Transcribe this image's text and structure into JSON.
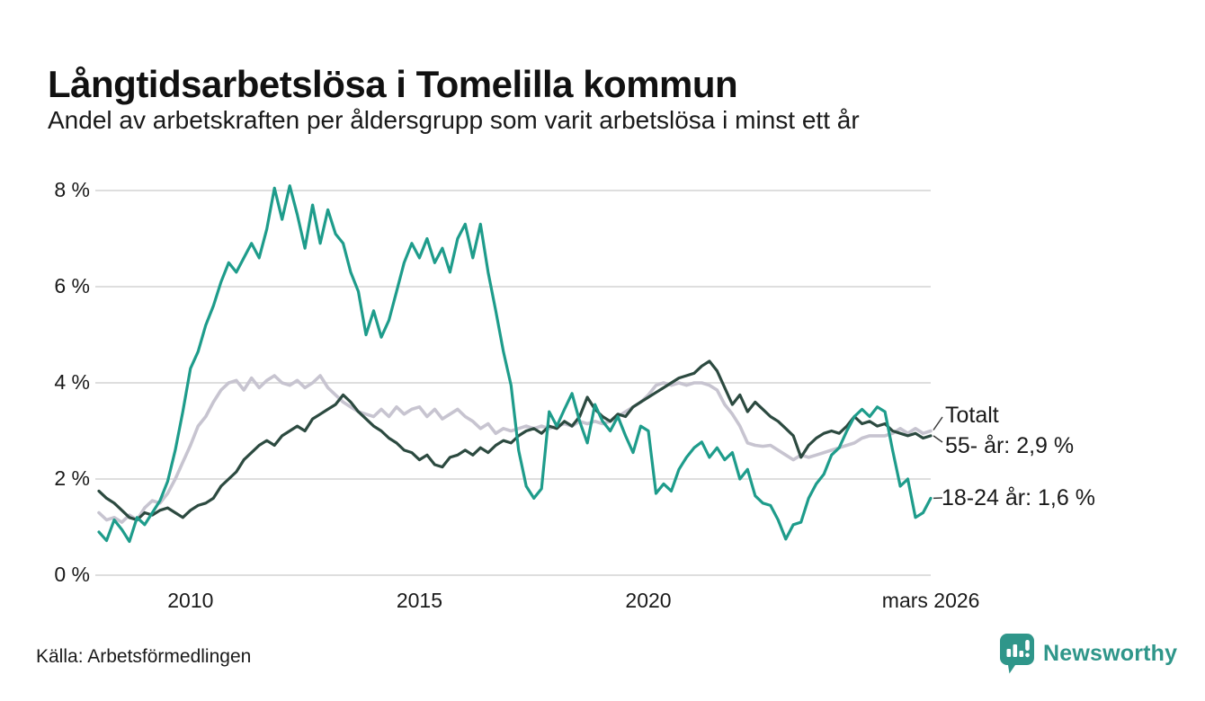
{
  "header": {
    "title": "Långtidsarbetslösa i Tomelilla kommun",
    "subtitle": "Andel av arbetskraften per åldersgrupp som varit arbetslösa i minst ett år"
  },
  "chart_data": {
    "type": "line",
    "title": "Långtidsarbetslösa i Tomelilla kommun",
    "subtitle": "Andel av arbetskraften per åldersgrupp som varit arbetslösa i minst ett år",
    "unit": "% av arbetskraften",
    "grid": "horizontal",
    "legend_position": "right-end-labels",
    "x0": 2008.0,
    "dx": 0.16667,
    "x_axis": {
      "ticks": [
        {
          "label": "2010",
          "year": 2010
        },
        {
          "label": "2015",
          "year": 2015
        },
        {
          "label": "2020",
          "year": 2020
        },
        {
          "label": "mars 2026",
          "year": 2026.17
        }
      ],
      "min": 2008.0,
      "max": 2026.17
    },
    "y_axis": {
      "min": 0,
      "max": 8,
      "ticks": [
        {
          "label": "0 %",
          "value": 0
        },
        {
          "label": "2 %",
          "value": 2
        },
        {
          "label": "4 %",
          "value": 4
        },
        {
          "label": "6 %",
          "value": 6
        },
        {
          "label": "8 %",
          "value": 8
        }
      ]
    },
    "end_labels": {
      "totalt": "Totalt",
      "older": "55- år: 2,9 %",
      "youth": "18-24 år: 1,6 %"
    },
    "series": [
      {
        "name": "Totalt",
        "color": "#c7c4d0",
        "width": 3.6,
        "end_value": 3.0,
        "values": [
          1.3,
          1.15,
          1.2,
          1.1,
          1.25,
          1.15,
          1.4,
          1.55,
          1.5,
          1.7,
          2.0,
          2.35,
          2.7,
          3.1,
          3.3,
          3.6,
          3.85,
          4.0,
          4.05,
          3.85,
          4.1,
          3.9,
          4.05,
          4.15,
          4.0,
          3.95,
          4.05,
          3.9,
          4.0,
          4.15,
          3.9,
          3.75,
          3.6,
          3.5,
          3.4,
          3.35,
          3.3,
          3.45,
          3.3,
          3.5,
          3.35,
          3.45,
          3.5,
          3.3,
          3.45,
          3.25,
          3.35,
          3.45,
          3.3,
          3.2,
          3.05,
          3.15,
          2.95,
          3.05,
          3.0,
          3.05,
          3.1,
          3.05,
          3.1,
          3.05,
          3.1,
          3.15,
          3.1,
          3.2,
          3.15,
          3.2,
          3.15,
          3.2,
          3.3,
          3.4,
          3.5,
          3.6,
          3.75,
          3.95,
          4.0,
          3.95,
          4.0,
          3.95,
          4.0,
          4.0,
          3.95,
          3.85,
          3.55,
          3.35,
          3.1,
          2.75,
          2.7,
          2.68,
          2.7,
          2.6,
          2.5,
          2.4,
          2.5,
          2.45,
          2.5,
          2.55,
          2.6,
          2.65,
          2.7,
          2.75,
          2.85,
          2.9,
          2.9,
          2.9,
          2.95,
          3.05,
          2.95,
          3.05,
          2.95,
          3.0
        ]
      },
      {
        "name": "55- år",
        "color": "#2c4a40",
        "width": 3.2,
        "end_value": 2.9,
        "values": [
          1.75,
          1.6,
          1.5,
          1.35,
          1.2,
          1.15,
          1.3,
          1.25,
          1.35,
          1.4,
          1.3,
          1.2,
          1.35,
          1.45,
          1.5,
          1.6,
          1.85,
          2.0,
          2.15,
          2.4,
          2.55,
          2.7,
          2.8,
          2.7,
          2.9,
          3.0,
          3.1,
          3.0,
          3.25,
          3.35,
          3.45,
          3.55,
          3.75,
          3.6,
          3.4,
          3.25,
          3.1,
          3.0,
          2.85,
          2.75,
          2.6,
          2.55,
          2.4,
          2.5,
          2.3,
          2.25,
          2.45,
          2.5,
          2.6,
          2.5,
          2.65,
          2.55,
          2.7,
          2.8,
          2.75,
          2.9,
          3.0,
          3.05,
          2.95,
          3.1,
          3.05,
          3.2,
          3.1,
          3.3,
          3.7,
          3.45,
          3.3,
          3.2,
          3.35,
          3.3,
          3.5,
          3.6,
          3.7,
          3.8,
          3.9,
          4.0,
          4.1,
          4.15,
          4.2,
          4.35,
          4.45,
          4.25,
          3.9,
          3.55,
          3.75,
          3.4,
          3.6,
          3.45,
          3.3,
          3.2,
          3.05,
          2.9,
          2.45,
          2.7,
          2.85,
          2.95,
          3.0,
          2.95,
          3.1,
          3.3,
          3.15,
          3.2,
          3.1,
          3.15,
          3.0,
          2.95,
          2.9,
          2.95,
          2.85,
          2.9
        ]
      },
      {
        "name": "18-24 år",
        "color": "#1e9c8b",
        "width": 3.2,
        "end_value": 1.6,
        "values": [
          0.9,
          0.72,
          1.15,
          0.95,
          0.7,
          1.2,
          1.05,
          1.3,
          1.55,
          1.95,
          2.6,
          3.4,
          4.3,
          4.65,
          5.2,
          5.6,
          6.1,
          6.5,
          6.3,
          6.6,
          6.9,
          6.6,
          7.2,
          8.05,
          7.4,
          8.1,
          7.5,
          6.8,
          7.7,
          6.9,
          7.6,
          7.1,
          6.9,
          6.3,
          5.9,
          5.0,
          5.5,
          4.95,
          5.3,
          5.9,
          6.5,
          6.9,
          6.6,
          7.0,
          6.5,
          6.8,
          6.3,
          7.0,
          7.3,
          6.6,
          7.3,
          6.3,
          5.5,
          4.65,
          3.95,
          2.6,
          1.85,
          1.6,
          1.8,
          3.4,
          3.1,
          3.45,
          3.78,
          3.2,
          2.75,
          3.55,
          3.2,
          3.0,
          3.3,
          2.9,
          2.55,
          3.1,
          3.0,
          1.7,
          1.9,
          1.75,
          2.2,
          2.45,
          2.65,
          2.77,
          2.45,
          2.65,
          2.4,
          2.55,
          2.0,
          2.2,
          1.65,
          1.5,
          1.45,
          1.15,
          0.75,
          1.05,
          1.1,
          1.6,
          1.9,
          2.1,
          2.5,
          2.65,
          3.0,
          3.3,
          3.45,
          3.3,
          3.5,
          3.4,
          2.6,
          1.85,
          2.0,
          1.2,
          1.3,
          1.6
        ]
      }
    ],
    "colors": {
      "grid": "#dedede",
      "leader": "#3a3a3a",
      "text": "#1a1a1a",
      "brand_teal": "#2f968a"
    }
  },
  "footer": {
    "source": "Källa: Arbetsförmedlingen",
    "brand": "Newsworthy"
  }
}
